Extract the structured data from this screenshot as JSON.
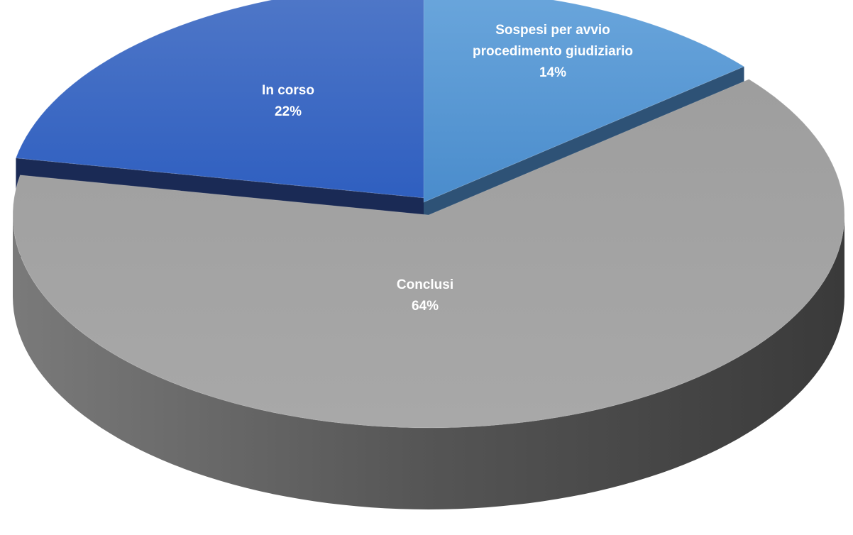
{
  "chart_data": {
    "type": "pie",
    "categories": [
      "Sospesi per avvio procedimento giudiziario",
      "Conclusi",
      "In corso"
    ],
    "values": [
      14,
      64,
      22
    ],
    "data_labels": [
      {
        "category_lines": [
          "Sospesi per avvio",
          "procedimento giudiziario"
        ],
        "percent": "14%"
      },
      {
        "category_lines": [
          "Conclusi"
        ],
        "percent": "64%"
      },
      {
        "category_lines": [
          "In corso"
        ],
        "percent": "22%"
      }
    ],
    "style": "3d-exploded",
    "legend": "none",
    "colors": {
      "slices": [
        "#5B9BD5",
        "#A5A5A5",
        "#4472C4"
      ],
      "sides": [
        "#2E5276",
        "#4A4A4A",
        "#1A2A55"
      ],
      "label_text": "#FFFFFF"
    }
  }
}
